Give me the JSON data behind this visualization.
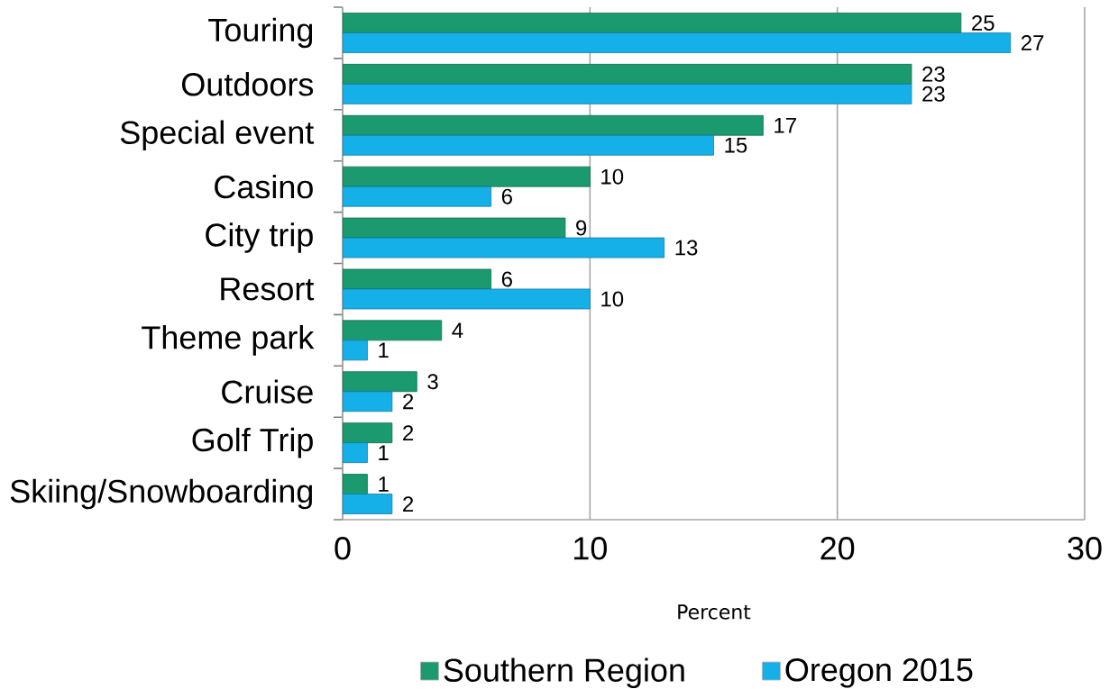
{
  "chart_data": {
    "type": "bar",
    "orientation": "horizontal",
    "categories": [
      "Touring",
      "Outdoors",
      "Special event",
      "Casino",
      "City trip",
      "Resort",
      "Theme park",
      "Cruise",
      "Golf Trip",
      "Skiing/Snowboarding"
    ],
    "series": [
      {
        "name": "Southern Region",
        "color": "#1a9a6e",
        "values": [
          25,
          23,
          17,
          10,
          9,
          6,
          4,
          3,
          2,
          1
        ]
      },
      {
        "name": "Oregon 2015",
        "color": "#16b0e8",
        "values": [
          27,
          23,
          15,
          6,
          13,
          10,
          1,
          2,
          1,
          2
        ]
      }
    ],
    "xlabel": "Percent",
    "xlim": [
      0,
      30
    ],
    "xticks": [
      0,
      10,
      20,
      30
    ],
    "grid": "x",
    "legend": "bottom",
    "data_labels": true
  }
}
